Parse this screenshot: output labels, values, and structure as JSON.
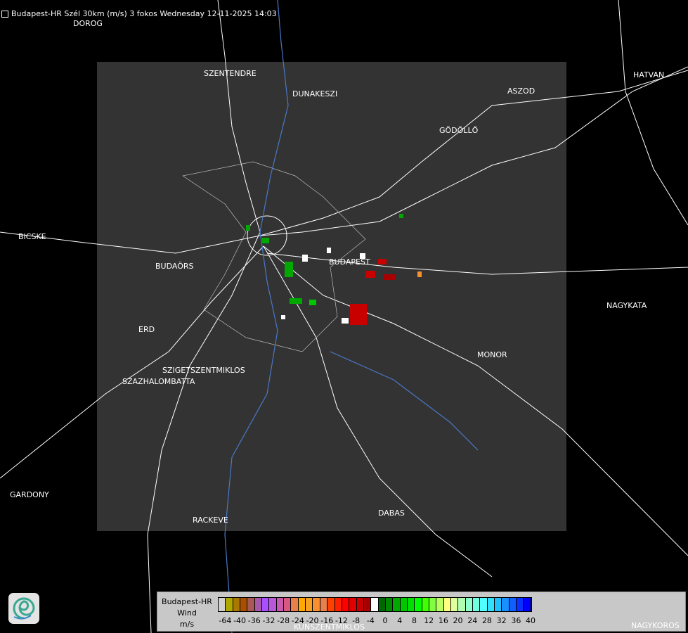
{
  "title": "Budapest-HR Szél 30km (m/s) 3 fokos Wednesday 12-11-2025 14:03",
  "cities": [
    {
      "name": "DOROG"
    },
    {
      "name": "SZENTENDRE"
    },
    {
      "name": "DUNAKESZI"
    },
    {
      "name": "HATVAN"
    },
    {
      "name": "ASZOD"
    },
    {
      "name": "GÖDÖLLŐ"
    },
    {
      "name": "BICSKE"
    },
    {
      "name": "BUDAÖRS"
    },
    {
      "name": "BUDAPEST"
    },
    {
      "name": "NAGYKATA"
    },
    {
      "name": "ERD"
    },
    {
      "name": "MONOR"
    },
    {
      "name": "SZIGETSZENTMIKLOS"
    },
    {
      "name": "SZAZHALOMBATTA"
    },
    {
      "name": "GARDONY"
    },
    {
      "name": "RACKEVE"
    },
    {
      "name": "DABAS"
    },
    {
      "name": "KUNSZENTMIKLOS"
    },
    {
      "name": "NAGYKOROS"
    }
  ],
  "legend": {
    "line1": "Budapest-HR",
    "line2": "Wind",
    "line3": "m/s",
    "ticks": [
      "-64",
      "-40",
      "-36",
      "-32",
      "-28",
      "-24",
      "-20",
      "-16",
      "-12",
      "-8",
      "-4",
      "0",
      "4",
      "8",
      "12",
      "16",
      "20",
      "24",
      "28",
      "32",
      "36",
      "40"
    ],
    "colors": [
      "#d0d0d0",
      "#b0a800",
      "#a87800",
      "#a85000",
      "#a85858",
      "#a858a8",
      "#a850ff",
      "#b858d8",
      "#c858b0",
      "#d85880",
      "#e8804c",
      "#ffa800",
      "#f8a020",
      "#f89030",
      "#e8804c",
      "#ff4000",
      "#ff2000",
      "#ff0000",
      "#e00000",
      "#c80000",
      "#a80000",
      "#ffffff",
      "#006800",
      "#008800",
      "#00a800",
      "#00c800",
      "#00e000",
      "#00ff00",
      "#40ff00",
      "#80ff40",
      "#b8ff60",
      "#ffff80",
      "#e0ffa0",
      "#b0ffb0",
      "#90ffd0",
      "#70ffe0",
      "#50ffff",
      "#30e0ff",
      "#20c0ff",
      "#1890ff",
      "#1060ff",
      "#0830ff",
      "#0000ff"
    ]
  },
  "logo_icon": "swirl-logo-icon"
}
